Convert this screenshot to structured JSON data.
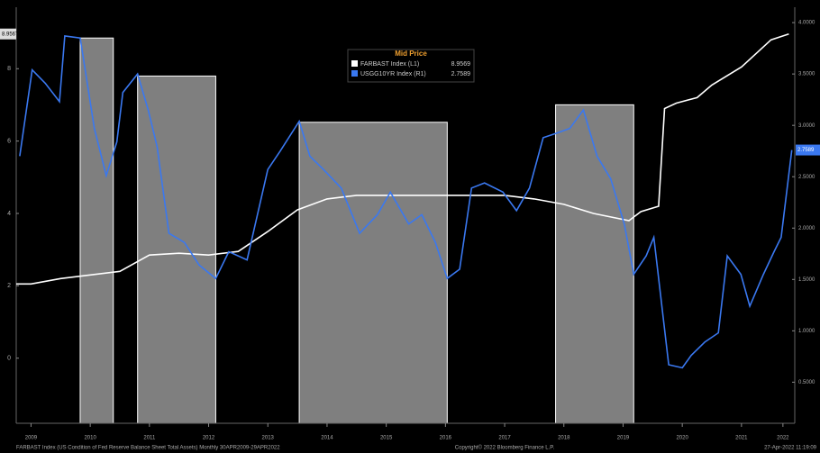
{
  "chart_data": {
    "type": "line",
    "legend_title": "Mid Price",
    "footer_left": "FARBAST Index (US Condition of Fed Reserve Balance Sheet Total Assets) Monthly 30APR2009-29APR2022",
    "footer_center": "Copyright© 2022 Bloomberg Finance L.P.",
    "footer_right": "27-Apr-2022 11:19:09",
    "xlim": [
      2009.25,
      2022.4
    ],
    "xticks": [
      {
        "value": 2009.5,
        "label": "2009"
      },
      {
        "value": 2010.5,
        "label": "2010"
      },
      {
        "value": 2011.5,
        "label": "2011"
      },
      {
        "value": 2012.5,
        "label": "2012"
      },
      {
        "value": 2013.5,
        "label": "2013"
      },
      {
        "value": 2014.5,
        "label": "2014"
      },
      {
        "value": 2015.5,
        "label": "2015"
      },
      {
        "value": 2016.5,
        "label": "2016"
      },
      {
        "value": 2017.5,
        "label": "2017"
      },
      {
        "value": 2018.5,
        "label": "2018"
      },
      {
        "value": 2019.5,
        "label": "2019"
      },
      {
        "value": 2020.5,
        "label": "2020"
      },
      {
        "value": 2021.5,
        "label": "2021"
      },
      {
        "value": 2022.2,
        "label": "2022"
      }
    ],
    "ylim": [
      -1.8,
      9.7
    ],
    "yticks": [
      0,
      2,
      4,
      6,
      8
    ],
    "y2lim": [
      0.1,
      4.15
    ],
    "y2ticks": [
      {
        "value": 0.5,
        "label": "0.5000"
      },
      {
        "value": 1.0,
        "label": "1.0000"
      },
      {
        "value": 1.5,
        "label": "1.5000"
      },
      {
        "value": 2.0,
        "label": "2.0000"
      },
      {
        "value": 2.5,
        "label": "2.5000"
      },
      {
        "value": 3.0,
        "label": "3.0000"
      },
      {
        "value": 3.5,
        "label": "3.5000"
      },
      {
        "value": 4.0,
        "label": "4.0000"
      }
    ],
    "shaded_regions": [
      {
        "start": 2010.33,
        "end": 2010.89,
        "top": 3.85
      },
      {
        "start": 2011.3,
        "end": 2012.62,
        "top": 3.48
      },
      {
        "start": 2014.03,
        "end": 2016.53,
        "top": 3.03
      },
      {
        "start": 2018.36,
        "end": 2019.68,
        "top": 3.2
      }
    ],
    "shade_color": "#7f7f7f",
    "series": [
      {
        "name": "FARBAST Index (L1)",
        "legend_value": "8.9569",
        "last_tag": "8.956T",
        "color": "#ffffff",
        "x": [
          2009.25,
          2009.5,
          2010.0,
          2010.5,
          2011.0,
          2011.5,
          2012.0,
          2012.5,
          2013.0,
          2013.5,
          2014.0,
          2014.5,
          2015.0,
          2016.0,
          2017.0,
          2017.5,
          2018.0,
          2018.5,
          2019.0,
          2019.6,
          2019.8,
          2020.1,
          2020.2,
          2020.4,
          2020.75,
          2021.0,
          2021.5,
          2022.0,
          2022.3
        ],
        "values": [
          2.05,
          2.05,
          2.2,
          2.3,
          2.4,
          2.85,
          2.9,
          2.85,
          2.95,
          3.5,
          4.1,
          4.4,
          4.5,
          4.5,
          4.5,
          4.5,
          4.4,
          4.25,
          4.0,
          3.8,
          4.05,
          4.2,
          6.9,
          7.05,
          7.2,
          7.55,
          8.05,
          8.8,
          8.96
        ]
      },
      {
        "name": "USGG10YR Index (R1)",
        "legend_value": "2.7589",
        "last_tag": "2.7589",
        "color": "#3a78f0",
        "axis": "y2",
        "x": [
          2009.31,
          2009.52,
          2009.74,
          2009.98,
          2010.07,
          2010.33,
          2010.57,
          2010.77,
          2010.95,
          2011.05,
          2011.3,
          2011.48,
          2011.63,
          2011.83,
          2012.09,
          2012.34,
          2012.62,
          2012.84,
          2013.15,
          2013.5,
          2013.71,
          2014.03,
          2014.21,
          2014.44,
          2014.74,
          2015.05,
          2015.35,
          2015.57,
          2015.88,
          2016.1,
          2016.33,
          2016.53,
          2016.74,
          2016.94,
          2017.16,
          2017.47,
          2017.7,
          2017.92,
          2018.15,
          2018.36,
          2018.6,
          2018.83,
          2019.06,
          2019.29,
          2019.52,
          2019.68,
          2019.89,
          2020.02,
          2020.27,
          2020.5,
          2020.65,
          2020.88,
          2021.11,
          2021.26,
          2021.49,
          2021.64,
          2021.87,
          2022.05,
          2022.17,
          2022.35
        ],
        "values": [
          2.7,
          3.54,
          3.41,
          3.23,
          3.87,
          3.85,
          2.97,
          2.51,
          2.84,
          3.32,
          3.5,
          3.15,
          2.79,
          1.95,
          1.86,
          1.64,
          1.51,
          1.77,
          1.69,
          2.57,
          2.75,
          3.04,
          2.7,
          2.57,
          2.39,
          1.95,
          2.13,
          2.35,
          2.04,
          2.13,
          1.86,
          1.51,
          1.6,
          2.39,
          2.44,
          2.35,
          2.17,
          2.39,
          2.88,
          2.92,
          2.97,
          3.15,
          2.7,
          2.48,
          2.04,
          1.55,
          1.73,
          1.91,
          0.67,
          0.64,
          0.76,
          0.89,
          0.98,
          1.73,
          1.55,
          1.24,
          1.55,
          1.77,
          1.91,
          2.76
        ]
      }
    ]
  }
}
